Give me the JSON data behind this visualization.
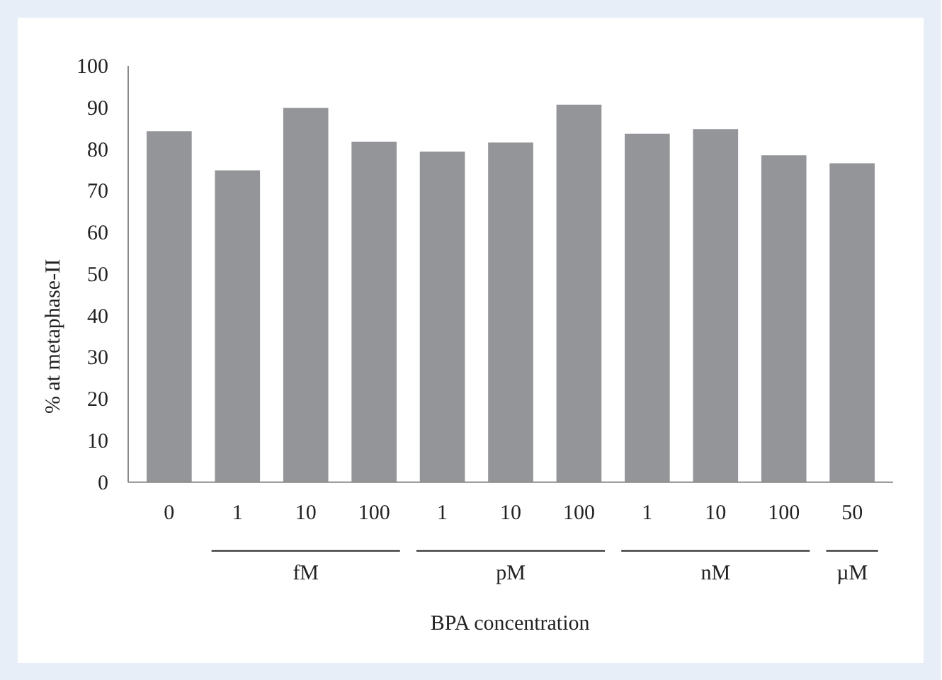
{
  "chart_data": {
    "type": "bar",
    "xlabel": "BPA concentration",
    "ylabel": "% at metaphase-II",
    "categories": [
      "0",
      "1",
      "10",
      "100",
      "1",
      "10",
      "100",
      "1",
      "10",
      "100",
      "50"
    ],
    "values": [
      84.3,
      74.9,
      89.9,
      81.8,
      79.4,
      81.6,
      90.7,
      83.7,
      84.8,
      78.5,
      76.6
    ],
    "color": "#939598",
    "ylim": [
      0,
      100
    ],
    "yticks": [
      0,
      10,
      20,
      30,
      40,
      50,
      60,
      70,
      80,
      90,
      100
    ],
    "grid": false,
    "annotations": [
      "fM",
      "pM",
      "nM",
      "µM"
    ]
  }
}
